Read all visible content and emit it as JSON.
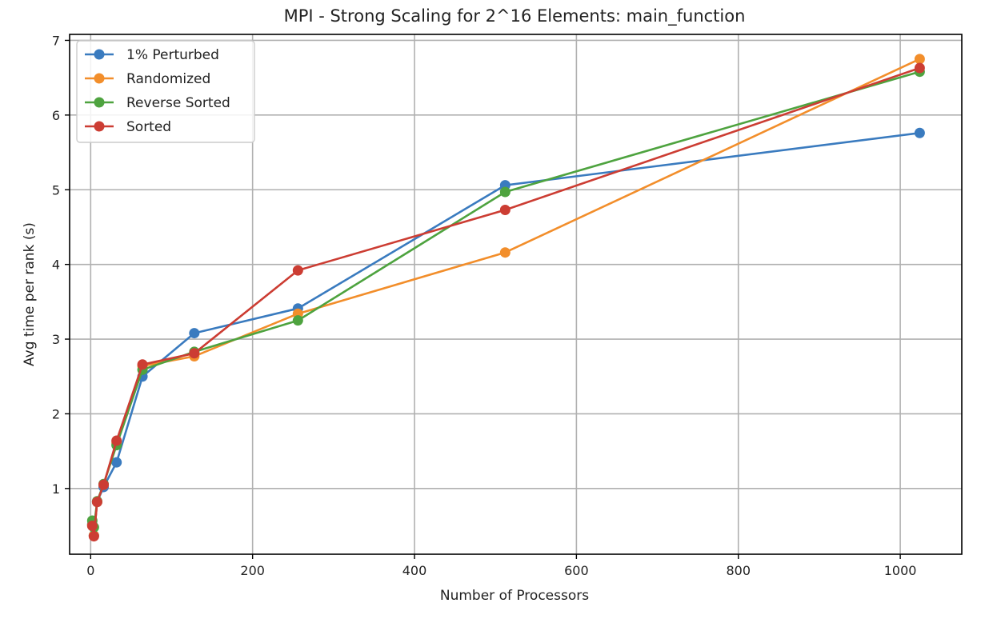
{
  "chart_data": {
    "type": "line",
    "title": "MPI - Strong Scaling for 2^16 Elements: main_function",
    "xlabel": "Number of Processors",
    "ylabel": "Avg time per rank (s)",
    "xlim": [
      -26,
      1076
    ],
    "ylim": [
      0.12,
      7.08
    ],
    "xticks": [
      0,
      200,
      400,
      600,
      800,
      1000
    ],
    "yticks": [
      1,
      2,
      3,
      4,
      5,
      6,
      7
    ],
    "grid": true,
    "legend_position": "upper-left",
    "x": [
      2,
      4,
      8,
      16,
      32,
      64,
      128,
      256,
      512,
      1024
    ],
    "series": [
      {
        "name": "1% Perturbed",
        "color": "#3a7bbf",
        "values": [
          0.52,
          0.37,
          0.82,
          1.02,
          1.35,
          2.5,
          3.08,
          3.41,
          5.06,
          5.76
        ]
      },
      {
        "name": "Randomized",
        "color": "#f28e2b",
        "values": [
          0.51,
          0.37,
          0.82,
          1.05,
          1.61,
          2.64,
          2.77,
          3.34,
          4.16,
          6.75
        ]
      },
      {
        "name": "Reverse Sorted",
        "color": "#4ea33f",
        "values": [
          0.57,
          0.48,
          0.83,
          1.06,
          1.58,
          2.59,
          2.83,
          3.25,
          4.97,
          6.58
        ]
      },
      {
        "name": "Sorted",
        "color": "#cc3d33",
        "values": [
          0.5,
          0.36,
          0.82,
          1.05,
          1.64,
          2.66,
          2.81,
          3.92,
          4.73,
          6.63
        ]
      }
    ]
  }
}
